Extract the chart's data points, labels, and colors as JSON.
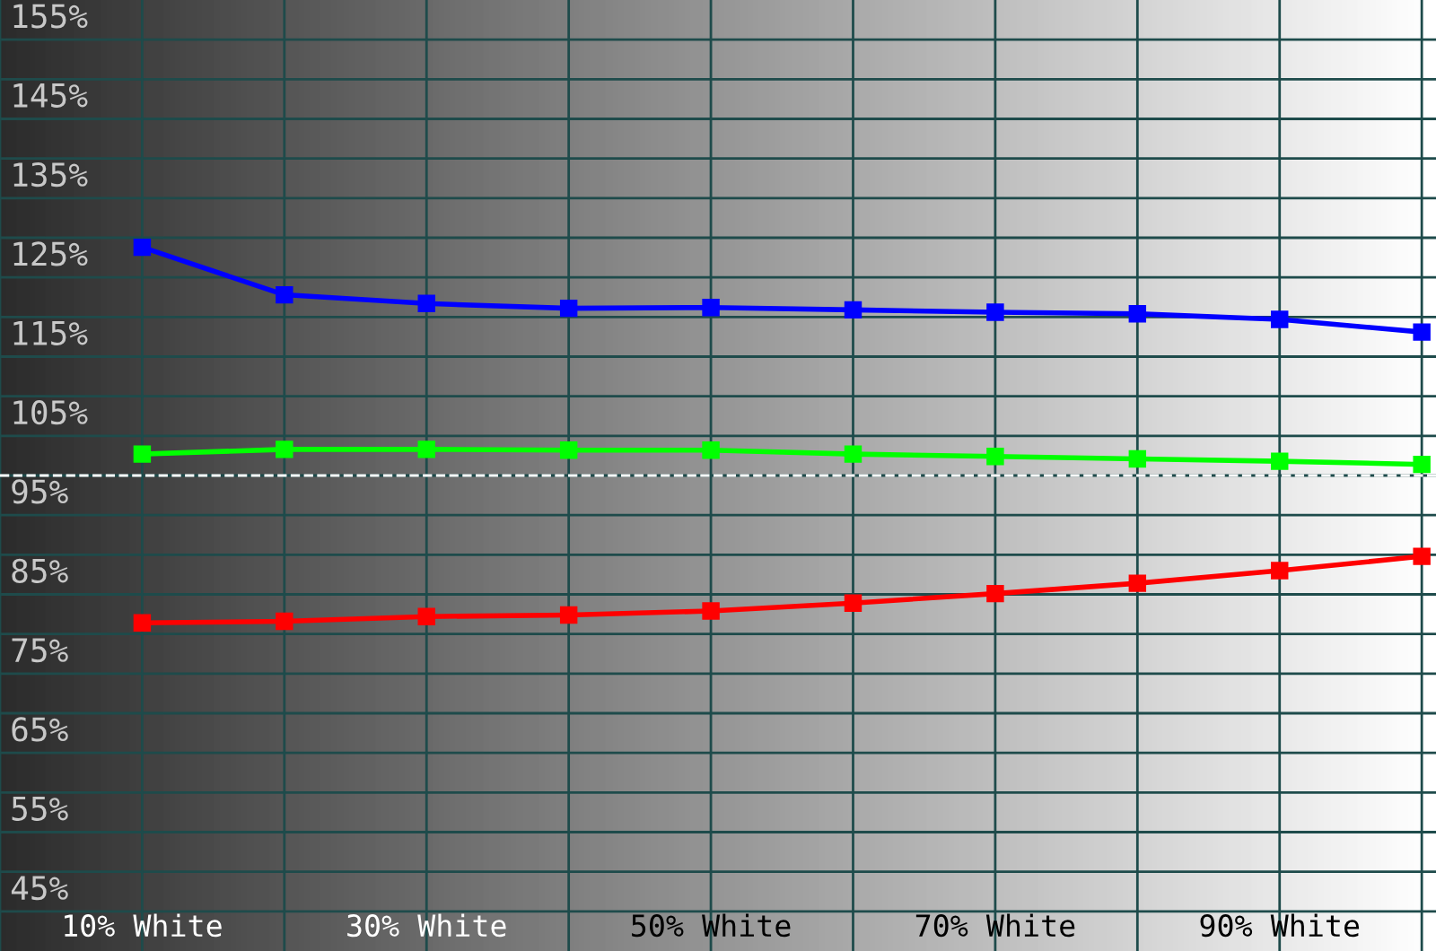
{
  "chart_data": {
    "type": "line",
    "categories": [
      "10% White",
      null,
      "30% White",
      null,
      "50% White",
      null,
      "70% White",
      null,
      "90% White",
      null
    ],
    "series": [
      {
        "color": "#0000ff",
        "values": [
          128.8,
          122.8,
          121.7,
          121.1,
          121.2,
          120.9,
          120.6,
          120.4,
          119.7,
          118.1
        ]
      },
      {
        "color": "#00ff00",
        "values": [
          102.7,
          103.3,
          103.3,
          103.2,
          103.2,
          102.7,
          102.4,
          102.1,
          101.8,
          101.4
        ]
      },
      {
        "color": "#ff0000",
        "values": [
          81.4,
          81.6,
          82.2,
          82.4,
          82.9,
          83.9,
          85.1,
          86.4,
          88.0,
          89.8
        ]
      }
    ],
    "ylim": [
      40,
      160
    ],
    "yticks": [
      {
        "value": 45,
        "label": "45%"
      },
      {
        "value": 50,
        "label": null
      },
      {
        "value": 55,
        "label": "55%"
      },
      {
        "value": 60,
        "label": null
      },
      {
        "value": 65,
        "label": "65%"
      },
      {
        "value": 70,
        "label": null
      },
      {
        "value": 75,
        "label": "75%"
      },
      {
        "value": 80,
        "label": null
      },
      {
        "value": 85,
        "label": "85%"
      },
      {
        "value": 90,
        "label": null
      },
      {
        "value": 95,
        "label": "95%"
      },
      {
        "value": 100,
        "label": null
      },
      {
        "value": 105,
        "label": "105%"
      },
      {
        "value": 110,
        "label": null
      },
      {
        "value": 115,
        "label": "115%"
      },
      {
        "value": 120,
        "label": null
      },
      {
        "value": 125,
        "label": "125%"
      },
      {
        "value": 130,
        "label": null
      },
      {
        "value": 135,
        "label": "135%"
      },
      {
        "value": 140,
        "label": null
      },
      {
        "value": 145,
        "label": "145%"
      },
      {
        "value": 150,
        "label": null
      },
      {
        "value": 155,
        "label": "155%"
      }
    ],
    "ref_lines": [
      {
        "axis": "y",
        "value": 100,
        "color": "#ffffff",
        "line_style": "dashed"
      }
    ],
    "grid": true,
    "legend": false,
    "marker": "square",
    "line_style": "solid"
  }
}
